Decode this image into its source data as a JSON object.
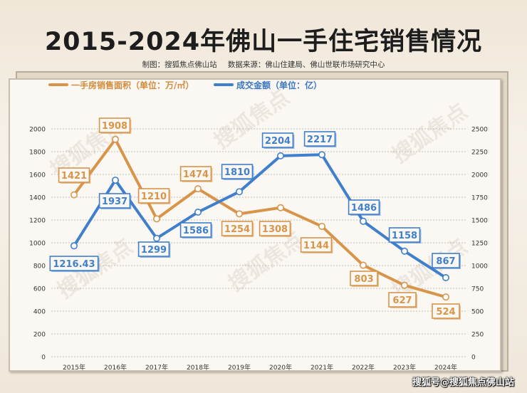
{
  "page": {
    "title": "2015-2024年佛山一手住宅销售情况",
    "maker": "制图：搜狐焦点佛山站",
    "source": "数据来源：佛山住建局、佛山世联市场研究中心",
    "watermark": "搜狐号@搜狐焦点佛山站",
    "bg_watermark": "搜狐焦点"
  },
  "colors": {
    "area": "#d8954a",
    "amount": "#3f7fcc",
    "grid": "#b0aaa0"
  },
  "chart_data": {
    "type": "line",
    "title": "2015-2024年佛山一手住宅销售情况",
    "categories": [
      "2015年",
      "2016年",
      "2017年",
      "2018年",
      "2019年",
      "2020年",
      "2021年",
      "2022年",
      "2023年",
      "2024年"
    ],
    "series": [
      {
        "name": "一手房销售面积（单位：万/㎡）",
        "axis": "left",
        "color": "#d8954a",
        "values": [
          1421,
          1908,
          1210,
          1474,
          1254,
          1308,
          1144,
          803,
          627,
          524
        ],
        "labels": [
          "1421",
          "1908",
          "1210",
          "1474",
          "1254",
          "1308",
          "1144",
          "803",
          "627",
          "524"
        ]
      },
      {
        "name": "成交金额（单位：亿）",
        "axis": "right",
        "color": "#3f7fcc",
        "values": [
          1216.43,
          1937,
          1299,
          1586,
          1810,
          2204,
          2217,
          1486,
          1158,
          867
        ],
        "labels": [
          "1216.43",
          "1937",
          "1299",
          "1586",
          "1810",
          "2204",
          "2217",
          "1486",
          "1158",
          "867"
        ]
      }
    ],
    "y_left": {
      "min": 0,
      "max": 2000,
      "ticks": [
        "0",
        "200",
        "400",
        "600",
        "800",
        "1000",
        "1200",
        "1400",
        "1600",
        "1800",
        "2000"
      ]
    },
    "y_right": {
      "min": 0,
      "max": 2500,
      "ticks": [
        "0",
        "250",
        "500",
        "750",
        "1000",
        "1250",
        "1500",
        "1750",
        "2000",
        "2250",
        "2500"
      ]
    },
    "grid": "horizontal dashed",
    "legend": "top-left"
  }
}
